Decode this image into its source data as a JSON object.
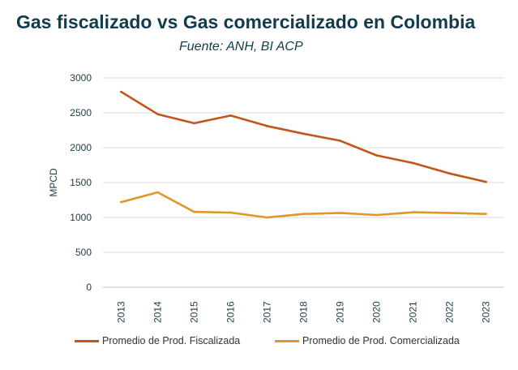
{
  "header": {
    "title": "Gas fiscalizado vs Gas comercializado en Colombia",
    "subtitle": "Fuente: ANH, BI ACP"
  },
  "colors": {
    "fiscalizada": "#c0561a",
    "comercializada": "#e1962b",
    "grid": "#d9d9d9",
    "axis": "#bfbfbf",
    "title": "#123b4c"
  },
  "chart_data": {
    "type": "line",
    "title": "Gas fiscalizado vs Gas comercializado en Colombia",
    "subtitle": "Fuente: ANH, BI ACP",
    "xlabel": "",
    "ylabel": "MPCD",
    "categories": [
      "2013",
      "2014",
      "2015",
      "2016",
      "2017",
      "2018",
      "2019",
      "2020",
      "2021",
      "2022",
      "2023"
    ],
    "yticks": [
      "0",
      "500",
      "1000",
      "1500",
      "2000",
      "2500",
      "3000"
    ],
    "ylim": [
      0,
      3000
    ],
    "grid": true,
    "legend_position": "bottom",
    "series": [
      {
        "name": "Promedio de Prod. Fiscalizada",
        "color_key": "fiscalizada",
        "values": [
          2800,
          2480,
          2350,
          2460,
          2310,
          2200,
          2100,
          1890,
          1780,
          1630,
          1510
        ]
      },
      {
        "name": "Promedio de Prod. Comercializada",
        "color_key": "comercializada",
        "values": [
          1220,
          1360,
          1080,
          1070,
          1000,
          1050,
          1065,
          1035,
          1075,
          1065,
          1050
        ]
      }
    ]
  }
}
